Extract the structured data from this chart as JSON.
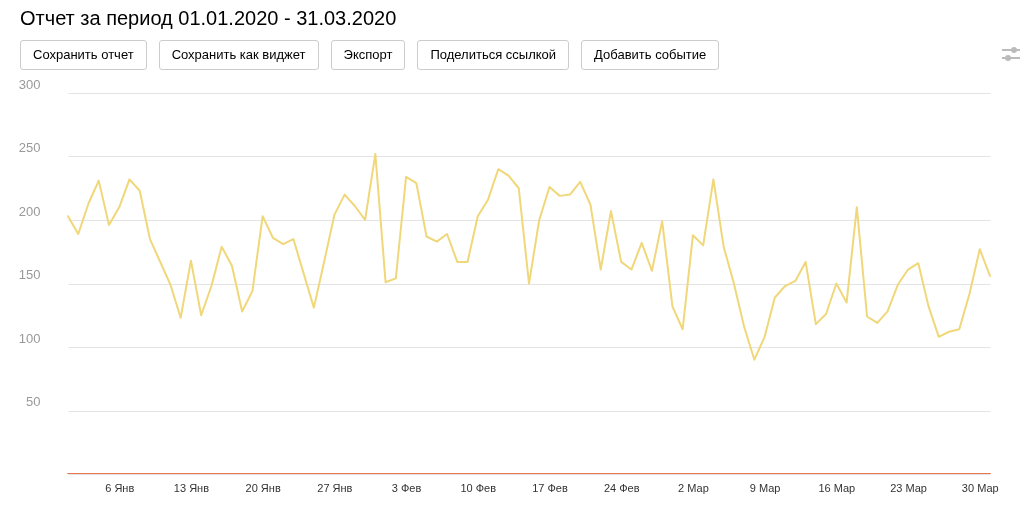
{
  "chart_data": {
    "type": "line",
    "title": "Отчет за период 01.01.2020 - 31.03.2020",
    "annotations": [
      "Сохранить отчет",
      "Сохранить как виджет",
      "Экспорт",
      "Поделиться ссылкой",
      "Добавить событие"
    ],
    "x": [
      "2020-01-01",
      "2020-01-02",
      "2020-01-03",
      "2020-01-04",
      "2020-01-05",
      "2020-01-06",
      "2020-01-07",
      "2020-01-08",
      "2020-01-09",
      "2020-01-10",
      "2020-01-11",
      "2020-01-12",
      "2020-01-13",
      "2020-01-14",
      "2020-01-15",
      "2020-01-16",
      "2020-01-17",
      "2020-01-18",
      "2020-01-19",
      "2020-01-20",
      "2020-01-21",
      "2020-01-22",
      "2020-01-23",
      "2020-01-24",
      "2020-01-25",
      "2020-01-26",
      "2020-01-27",
      "2020-01-28",
      "2020-01-29",
      "2020-01-30",
      "2020-01-31",
      "2020-02-01",
      "2020-02-02",
      "2020-02-03",
      "2020-02-04",
      "2020-02-05",
      "2020-02-06",
      "2020-02-07",
      "2020-02-08",
      "2020-02-09",
      "2020-02-10",
      "2020-02-11",
      "2020-02-12",
      "2020-02-13",
      "2020-02-14",
      "2020-02-15",
      "2020-02-16",
      "2020-02-17",
      "2020-02-18",
      "2020-02-19",
      "2020-02-20",
      "2020-02-21",
      "2020-02-22",
      "2020-02-23",
      "2020-02-24",
      "2020-02-25",
      "2020-02-26",
      "2020-02-27",
      "2020-02-28",
      "2020-02-29",
      "2020-03-01",
      "2020-03-02",
      "2020-03-03",
      "2020-03-04",
      "2020-03-05",
      "2020-03-06",
      "2020-03-07",
      "2020-03-08",
      "2020-03-09",
      "2020-03-10",
      "2020-03-11",
      "2020-03-12",
      "2020-03-13",
      "2020-03-14",
      "2020-03-15",
      "2020-03-16",
      "2020-03-17",
      "2020-03-18",
      "2020-03-19",
      "2020-03-20",
      "2020-03-21",
      "2020-03-22",
      "2020-03-23",
      "2020-03-24",
      "2020-03-25",
      "2020-03-26",
      "2020-03-27",
      "2020-03-28",
      "2020-03-29",
      "2020-03-30",
      "2020-03-31"
    ],
    "series": [
      {
        "color": "#f0d77a",
        "values": [
          203,
          189,
          213,
          231,
          196,
          210,
          232,
          223,
          185,
          167,
          149,
          123,
          168,
          125,
          148,
          179,
          164,
          128,
          144,
          203,
          186,
          181,
          185,
          158,
          131,
          167,
          204,
          220,
          211,
          200,
          252,
          151,
          154,
          234,
          229,
          187,
          183,
          189,
          167,
          167,
          203,
          216,
          240,
          235,
          225,
          150,
          200,
          226,
          219,
          220,
          230,
          212,
          161,
          207,
          167,
          161,
          182,
          160,
          199,
          132,
          114,
          188,
          180,
          232,
          179,
          150,
          116,
          90,
          108,
          139,
          148,
          152,
          167,
          118,
          126,
          150,
          135,
          210,
          124,
          119,
          128,
          149,
          161,
          166,
          132,
          108,
          112,
          114,
          142,
          177,
          156
        ]
      },
      {
        "color": "#e8764f",
        "values": [
          0,
          0,
          0,
          0,
          0,
          0,
          0,
          0,
          0,
          0,
          0,
          0,
          0,
          0,
          0,
          0,
          0,
          0,
          0,
          0,
          0,
          0,
          0,
          0,
          0,
          0,
          0,
          0,
          0,
          0,
          0,
          0,
          0,
          0,
          0,
          0,
          0,
          0,
          0,
          0,
          0,
          0,
          0,
          0,
          0,
          0,
          0,
          0,
          0,
          0,
          0,
          0,
          0,
          0,
          0,
          0,
          0,
          0,
          0,
          0,
          0,
          0,
          0,
          0,
          0,
          0,
          0,
          0,
          0,
          0,
          0,
          0,
          0,
          0,
          0,
          0,
          0,
          0,
          0,
          0,
          0,
          0,
          0,
          0,
          0,
          0,
          0,
          0,
          0,
          0,
          0
        ]
      }
    ],
    "xlim": [
      "2020-01-01",
      "2020-03-31"
    ],
    "xticks": [
      {
        "value": "2020-01-06",
        "label": "6 Янв"
      },
      {
        "value": "2020-01-13",
        "label": "13 Янв"
      },
      {
        "value": "2020-01-20",
        "label": "20 Янв"
      },
      {
        "value": "2020-01-27",
        "label": "27 Янв"
      },
      {
        "value": "2020-02-03",
        "label": "3 Фев"
      },
      {
        "value": "2020-02-10",
        "label": "10 Фев"
      },
      {
        "value": "2020-02-17",
        "label": "17 Фев"
      },
      {
        "value": "2020-02-24",
        "label": "24 Фев"
      },
      {
        "value": "2020-03-02",
        "label": "2 Мар"
      },
      {
        "value": "2020-03-09",
        "label": "9 Мар"
      },
      {
        "value": "2020-03-16",
        "label": "16 Мар"
      },
      {
        "value": "2020-03-23",
        "label": "23 Мар"
      },
      {
        "value": "2020-03-30",
        "label": "30 Мар"
      }
    ],
    "ylim": [
      0,
      300
    ],
    "yticks": [
      {
        "value": 0,
        "label": null
      },
      50,
      100,
      150,
      200,
      250,
      300
    ],
    "grid": "y",
    "marker": "none",
    "line_style": "solid"
  }
}
